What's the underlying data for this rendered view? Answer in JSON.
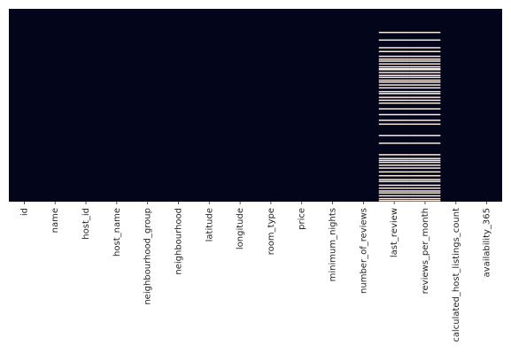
{
  "chart_data": {
    "type": "heatmap",
    "title": "",
    "xlabel": "",
    "ylabel": "",
    "columns": [
      "id",
      "name",
      "host_id",
      "host_name",
      "neighbourhood_group",
      "neighbourhood",
      "latitude",
      "longitude",
      "room_type",
      "price",
      "minimum_nights",
      "number_of_reviews",
      "last_review",
      "reviews_per_month",
      "calculated_host_listings_count",
      "availability_365"
    ],
    "colors": {
      "present": "#03051a",
      "missing": "#faebdd"
    },
    "missing_rows": {
      "name": [],
      "host_name": [],
      "last_review": [
        0.12,
        0.16,
        0.2,
        0.22,
        0.245,
        0.26,
        0.27,
        0.285,
        0.3,
        0.31,
        0.315,
        0.33,
        0.345,
        0.355,
        0.37,
        0.38,
        0.395,
        0.41,
        0.43,
        0.44,
        0.46,
        0.475,
        0.49,
        0.52,
        0.55,
        0.58,
        0.6,
        0.66,
        0.7,
        0.76,
        0.78,
        0.79,
        0.8,
        0.815,
        0.83,
        0.85,
        0.87,
        0.89,
        0.9,
        0.92,
        0.935,
        0.95,
        0.96,
        0.975,
        0.99,
        1.0
      ],
      "reviews_per_month": [
        0.12,
        0.16,
        0.2,
        0.22,
        0.245,
        0.26,
        0.27,
        0.285,
        0.3,
        0.31,
        0.315,
        0.33,
        0.345,
        0.355,
        0.37,
        0.38,
        0.395,
        0.41,
        0.43,
        0.44,
        0.46,
        0.475,
        0.49,
        0.52,
        0.55,
        0.58,
        0.6,
        0.66,
        0.7,
        0.76,
        0.78,
        0.79,
        0.8,
        0.815,
        0.83,
        0.85,
        0.87,
        0.89,
        0.9,
        0.92,
        0.935,
        0.95,
        0.96,
        0.975,
        0.99,
        1.0
      ]
    }
  }
}
